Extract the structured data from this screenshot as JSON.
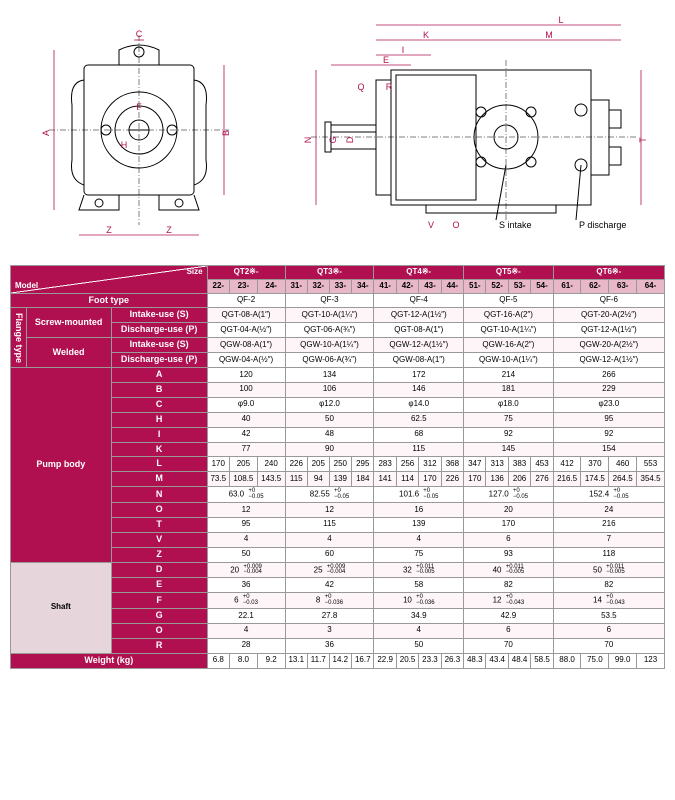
{
  "diagrams": {
    "left_labels": [
      "A",
      "B",
      "C",
      "F",
      "H",
      "Z",
      "Z"
    ],
    "right_labels": [
      "L",
      "K",
      "M",
      "I",
      "E",
      "Q",
      "R",
      "N",
      "G",
      "D",
      "T",
      "V",
      "O"
    ],
    "annotations": [
      "S intake",
      "P discharge"
    ]
  },
  "table": {
    "header": {
      "size": "Size",
      "model": "Model",
      "groups": [
        "QT2※-",
        "QT3※-",
        "QT4※-",
        "QT5※-",
        "QT6※-"
      ],
      "cols": [
        "22-",
        "23-",
        "24-",
        "31-",
        "32-",
        "33-",
        "34-",
        "41-",
        "42-",
        "43-",
        "44-",
        "51-",
        "52-",
        "53-",
        "54-",
        "61-",
        "62-",
        "63-",
        "64-"
      ]
    },
    "foot_type": {
      "label": "Foot type",
      "vals": [
        "QF-2",
        "QF-3",
        "QF-4",
        "QF-5",
        "QF-6"
      ]
    },
    "flange": {
      "label": "Flange type",
      "screw": {
        "label": "Screw-mounted",
        "intake": {
          "label": "Intake-use (S)",
          "vals": [
            "QGT-08-A(1″)",
            "QGT-10-A(1¼″)",
            "QGT-12-A(1½″)",
            "QGT-16-A(2″)",
            "QGT-20-A(2½″)"
          ]
        },
        "discharge": {
          "label": "Discharge-use (P)",
          "vals": [
            "QGT-04-A(½″)",
            "QGT-06-A(¾″)",
            "QGT-08-A(1″)",
            "QGT-10-A(1¼″)",
            "QGT-12-A(1½″)"
          ]
        }
      },
      "welded": {
        "label": "Welded",
        "intake": {
          "label": "Intake-use (S)",
          "vals": [
            "QGW-08-A(1″)",
            "QGW-10-A(1¼″)",
            "QGW-12-A(1½″)",
            "QGW-16-A(2″)",
            "QGW-20-A(2½″)"
          ]
        },
        "discharge": {
          "label": "Discharge-use (P)",
          "vals": [
            "QGW-04-A(½″)",
            "QGW-06-A(¾″)",
            "QGW-08-A(1″)",
            "QGW-10-A(1¼″)",
            "QGW-12-A(1½″)"
          ]
        }
      }
    },
    "pump_body": {
      "label": "Pump body",
      "rows": [
        {
          "k": "A",
          "type": "span5",
          "v": [
            "120",
            "134",
            "172",
            "214",
            "266"
          ]
        },
        {
          "k": "B",
          "type": "span5",
          "v": [
            "100",
            "106",
            "146",
            "181",
            "229"
          ]
        },
        {
          "k": "C",
          "type": "span5",
          "v": [
            "φ9.0",
            "φ12.0",
            "φ14.0",
            "φ18.0",
            "φ23.0"
          ]
        },
        {
          "k": "H",
          "type": "span5",
          "v": [
            "40",
            "50",
            "62.5",
            "75",
            "95"
          ]
        },
        {
          "k": "I",
          "type": "span5",
          "v": [
            "42",
            "48",
            "68",
            "92",
            "92"
          ]
        },
        {
          "k": "K",
          "type": "span5",
          "v": [
            "77",
            "90",
            "115",
            "145",
            "154"
          ]
        },
        {
          "k": "L",
          "type": "per",
          "v": [
            "170",
            "205",
            "240",
            "226",
            "205",
            "250",
            "295",
            "283",
            "256",
            "312",
            "368",
            "347",
            "313",
            "383",
            "453",
            "412",
            "370",
            "460",
            "553"
          ]
        },
        {
          "k": "M",
          "type": "per",
          "v": [
            "73.5",
            "108.5",
            "143.5",
            "115",
            "94",
            "139",
            "184",
            "141",
            "114",
            "170",
            "226",
            "170",
            "136",
            "206",
            "276",
            "216.5",
            "174.5",
            "264.5",
            "354.5"
          ]
        },
        {
          "k": "N",
          "type": "tol5",
          "v": [
            [
              "63.0",
              "+0",
              "−0.05"
            ],
            [
              "82.55",
              "+0",
              "−0.05"
            ],
            [
              "101.6",
              "+0",
              "−0.05"
            ],
            [
              "127.0",
              "+0",
              "−0.05"
            ],
            [
              "152.4",
              "+0",
              "−0.05"
            ]
          ]
        },
        {
          "k": "O",
          "type": "span5",
          "v": [
            "12",
            "12",
            "16",
            "20",
            "24"
          ]
        },
        {
          "k": "T",
          "type": "span5",
          "v": [
            "95",
            "115",
            "139",
            "170",
            "216"
          ]
        },
        {
          "k": "V",
          "type": "span5",
          "v": [
            "4",
            "4",
            "4",
            "6",
            "7"
          ]
        },
        {
          "k": "Z",
          "type": "span5",
          "v": [
            "50",
            "60",
            "75",
            "93",
            "118"
          ]
        }
      ]
    },
    "shaft": {
      "label": "Shaft",
      "rows": [
        {
          "k": "D",
          "type": "tol5",
          "v": [
            [
              "20",
              "+0.009",
              "−0.004"
            ],
            [
              "25",
              "+0.009",
              "−0.004"
            ],
            [
              "32",
              "+0.011",
              "−0.005"
            ],
            [
              "40",
              "+0.011",
              "−0.005"
            ],
            [
              "50",
              "+0.011",
              "−0.005"
            ]
          ]
        },
        {
          "k": "E",
          "type": "span5",
          "v": [
            "36",
            "42",
            "58",
            "82",
            "82"
          ]
        },
        {
          "k": "F",
          "type": "tol5",
          "v": [
            [
              "6",
              "+0",
              "−0.03"
            ],
            [
              "8",
              "+0",
              "−0.036"
            ],
            [
              "10",
              "+0",
              "−0.036"
            ],
            [
              "12",
              "+0",
              "−0.043"
            ],
            [
              "14",
              "+0",
              "−0.043"
            ]
          ]
        },
        {
          "k": "G",
          "type": "span5",
          "v": [
            "22.1",
            "27.8",
            "34.9",
            "42.9",
            "53.5"
          ]
        },
        {
          "k": "O",
          "type": "span5",
          "v": [
            "4",
            "3",
            "4",
            "6",
            "6"
          ]
        },
        {
          "k": "R",
          "type": "span5",
          "v": [
            "28",
            "36",
            "50",
            "70",
            "70"
          ]
        }
      ]
    },
    "weight": {
      "label": "Weight (kg)",
      "v": [
        "6.8",
        "8.0",
        "9.2",
        "13.1",
        "11.7",
        "14.2",
        "16.7",
        "22.9",
        "20.5",
        "23.3",
        "26.3",
        "48.3",
        "43.4",
        "48.4",
        "58.5",
        "88.0",
        "75.0",
        "99.0",
        "123"
      ]
    }
  }
}
